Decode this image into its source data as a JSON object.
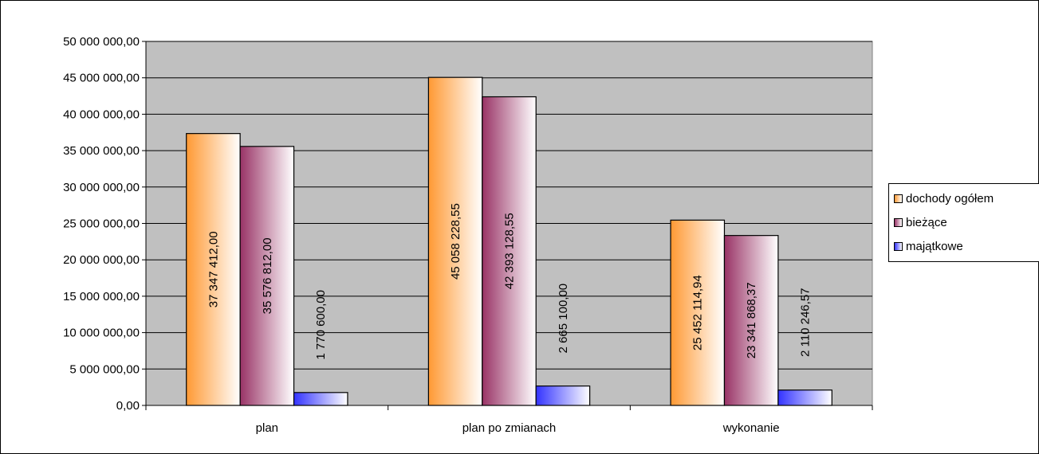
{
  "chart_data": {
    "type": "bar",
    "categories": [
      "plan",
      "plan po zmianach",
      "wykonanie"
    ],
    "series": [
      {
        "name": "dochody ogółem",
        "color": "#ff9933",
        "values": [
          37347412.0,
          45058228.55,
          25452114.94
        ],
        "labels": [
          "37 347 412,00",
          "45 058 228,55",
          "25 452 114,94"
        ]
      },
      {
        "name": "bieżące",
        "color": "#993366",
        "values": [
          35576812.0,
          42393128.55,
          23341868.37
        ],
        "labels": [
          "35 576 812,00",
          "42 393 128,55",
          "23 341 868,37"
        ]
      },
      {
        "name": "majątkowe",
        "color": "#3333ff",
        "values": [
          1770600.0,
          2665100.0,
          2110246.57
        ],
        "labels": [
          "1 770 600,00",
          "2 665 100,00",
          "2 110 246,57"
        ]
      }
    ],
    "ylim": [
      0,
      50000000
    ],
    "yticks": [
      {
        "value": 0,
        "label": "0,00"
      },
      {
        "value": 5000000,
        "label": "5 000 000,00"
      },
      {
        "value": 10000000,
        "label": "10 000 000,00"
      },
      {
        "value": 15000000,
        "label": "15 000 000,00"
      },
      {
        "value": 20000000,
        "label": "20 000 000,00"
      },
      {
        "value": 25000000,
        "label": "25 000 000,00"
      },
      {
        "value": 30000000,
        "label": "30 000 000,00"
      },
      {
        "value": 35000000,
        "label": "35 000 000,00"
      },
      {
        "value": 40000000,
        "label": "40 000 000,00"
      },
      {
        "value": 45000000,
        "label": "45 000 000,00"
      },
      {
        "value": 50000000,
        "label": "50 000 000,00"
      }
    ],
    "grid": true,
    "plot_background": "#c0c0c0",
    "legend_position": "right"
  }
}
